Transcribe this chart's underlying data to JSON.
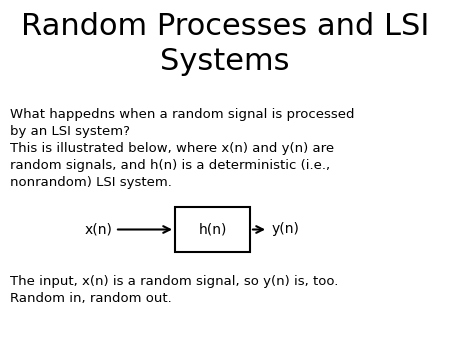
{
  "title": "Random Processes and LSI\nSystems",
  "title_fontsize": 22,
  "body_fontsize": 9.5,
  "diagram_fontsize": 10,
  "background_color": "#ffffff",
  "text_color": "#000000",
  "para1_line1": "What happedns when a random signal is processed",
  "para1_line2": "by an LSI system?",
  "para1_line3": "This is illustrated below, where x(n) and y(n) are",
  "para1_line4": "random signals, and h(n) is a deterministic (i.e.,",
  "para1_line5": "nonrandom) LSI system.",
  "para2_line1": "The input, x(n) is a random signal, so y(n) is, too.",
  "para2_line2": "Random in, random out.",
  "box_label": "h(n)",
  "input_label": "x(n)",
  "output_label": "y(n)"
}
